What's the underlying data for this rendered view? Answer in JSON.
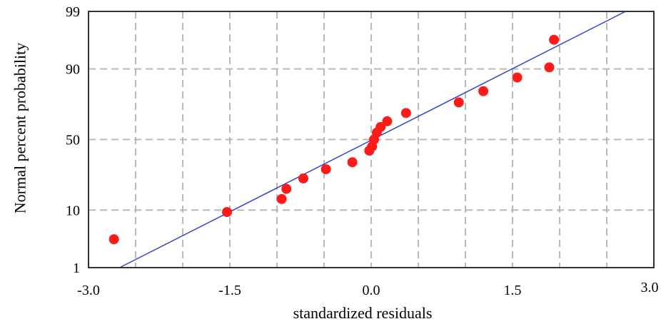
{
  "chart_data": {
    "type": "scatter",
    "title": "",
    "xlabel": "standardized residuals",
    "ylabel": "Normal percent probability",
    "xlim": [
      -3.0,
      3.0
    ],
    "x_ticks": [
      {
        "value": -3.0,
        "label": "-3.0"
      },
      {
        "value": -1.5,
        "label": "-1.5"
      },
      {
        "value": 0.0,
        "label": "0.0"
      },
      {
        "value": 1.5,
        "label": "1.5"
      },
      {
        "value": 3.0,
        "label": "3.0"
      }
    ],
    "y_scale": "normal-probability",
    "ylim": [
      1,
      99
    ],
    "y_ticks": [
      {
        "value": 1,
        "label": "1"
      },
      {
        "value": 10,
        "label": "10"
      },
      {
        "value": 50,
        "label": "50"
      },
      {
        "value": 90,
        "label": "90"
      },
      {
        "value": 99,
        "label": "99"
      }
    ],
    "grid": true,
    "points": [
      {
        "x": -2.73,
        "y": 3.5
      },
      {
        "x": -1.53,
        "y": 9.4
      },
      {
        "x": -0.95,
        "y": 14
      },
      {
        "x": -0.9,
        "y": 18.5
      },
      {
        "x": -0.72,
        "y": 24
      },
      {
        "x": -0.48,
        "y": 29.5
      },
      {
        "x": -0.2,
        "y": 34
      },
      {
        "x": -0.02,
        "y": 42
      },
      {
        "x": 0.01,
        "y": 45
      },
      {
        "x": 0.03,
        "y": 50
      },
      {
        "x": 0.06,
        "y": 55
      },
      {
        "x": 0.1,
        "y": 59
      },
      {
        "x": 0.17,
        "y": 63
      },
      {
        "x": 0.37,
        "y": 68.5
      },
      {
        "x": 0.93,
        "y": 75
      },
      {
        "x": 1.19,
        "y": 81
      },
      {
        "x": 1.55,
        "y": 87
      },
      {
        "x": 1.89,
        "y": 90.5
      },
      {
        "x": 1.94,
        "y": 96.5
      }
    ],
    "fit_line": [
      {
        "x": -2.67,
        "y": 1
      },
      {
        "x": 2.7,
        "y": 99
      }
    ],
    "colors": {
      "points": "#ff1a1a",
      "fit_line": "#3344cc",
      "grid": "#b8b8b8",
      "frame": "#333333"
    }
  }
}
